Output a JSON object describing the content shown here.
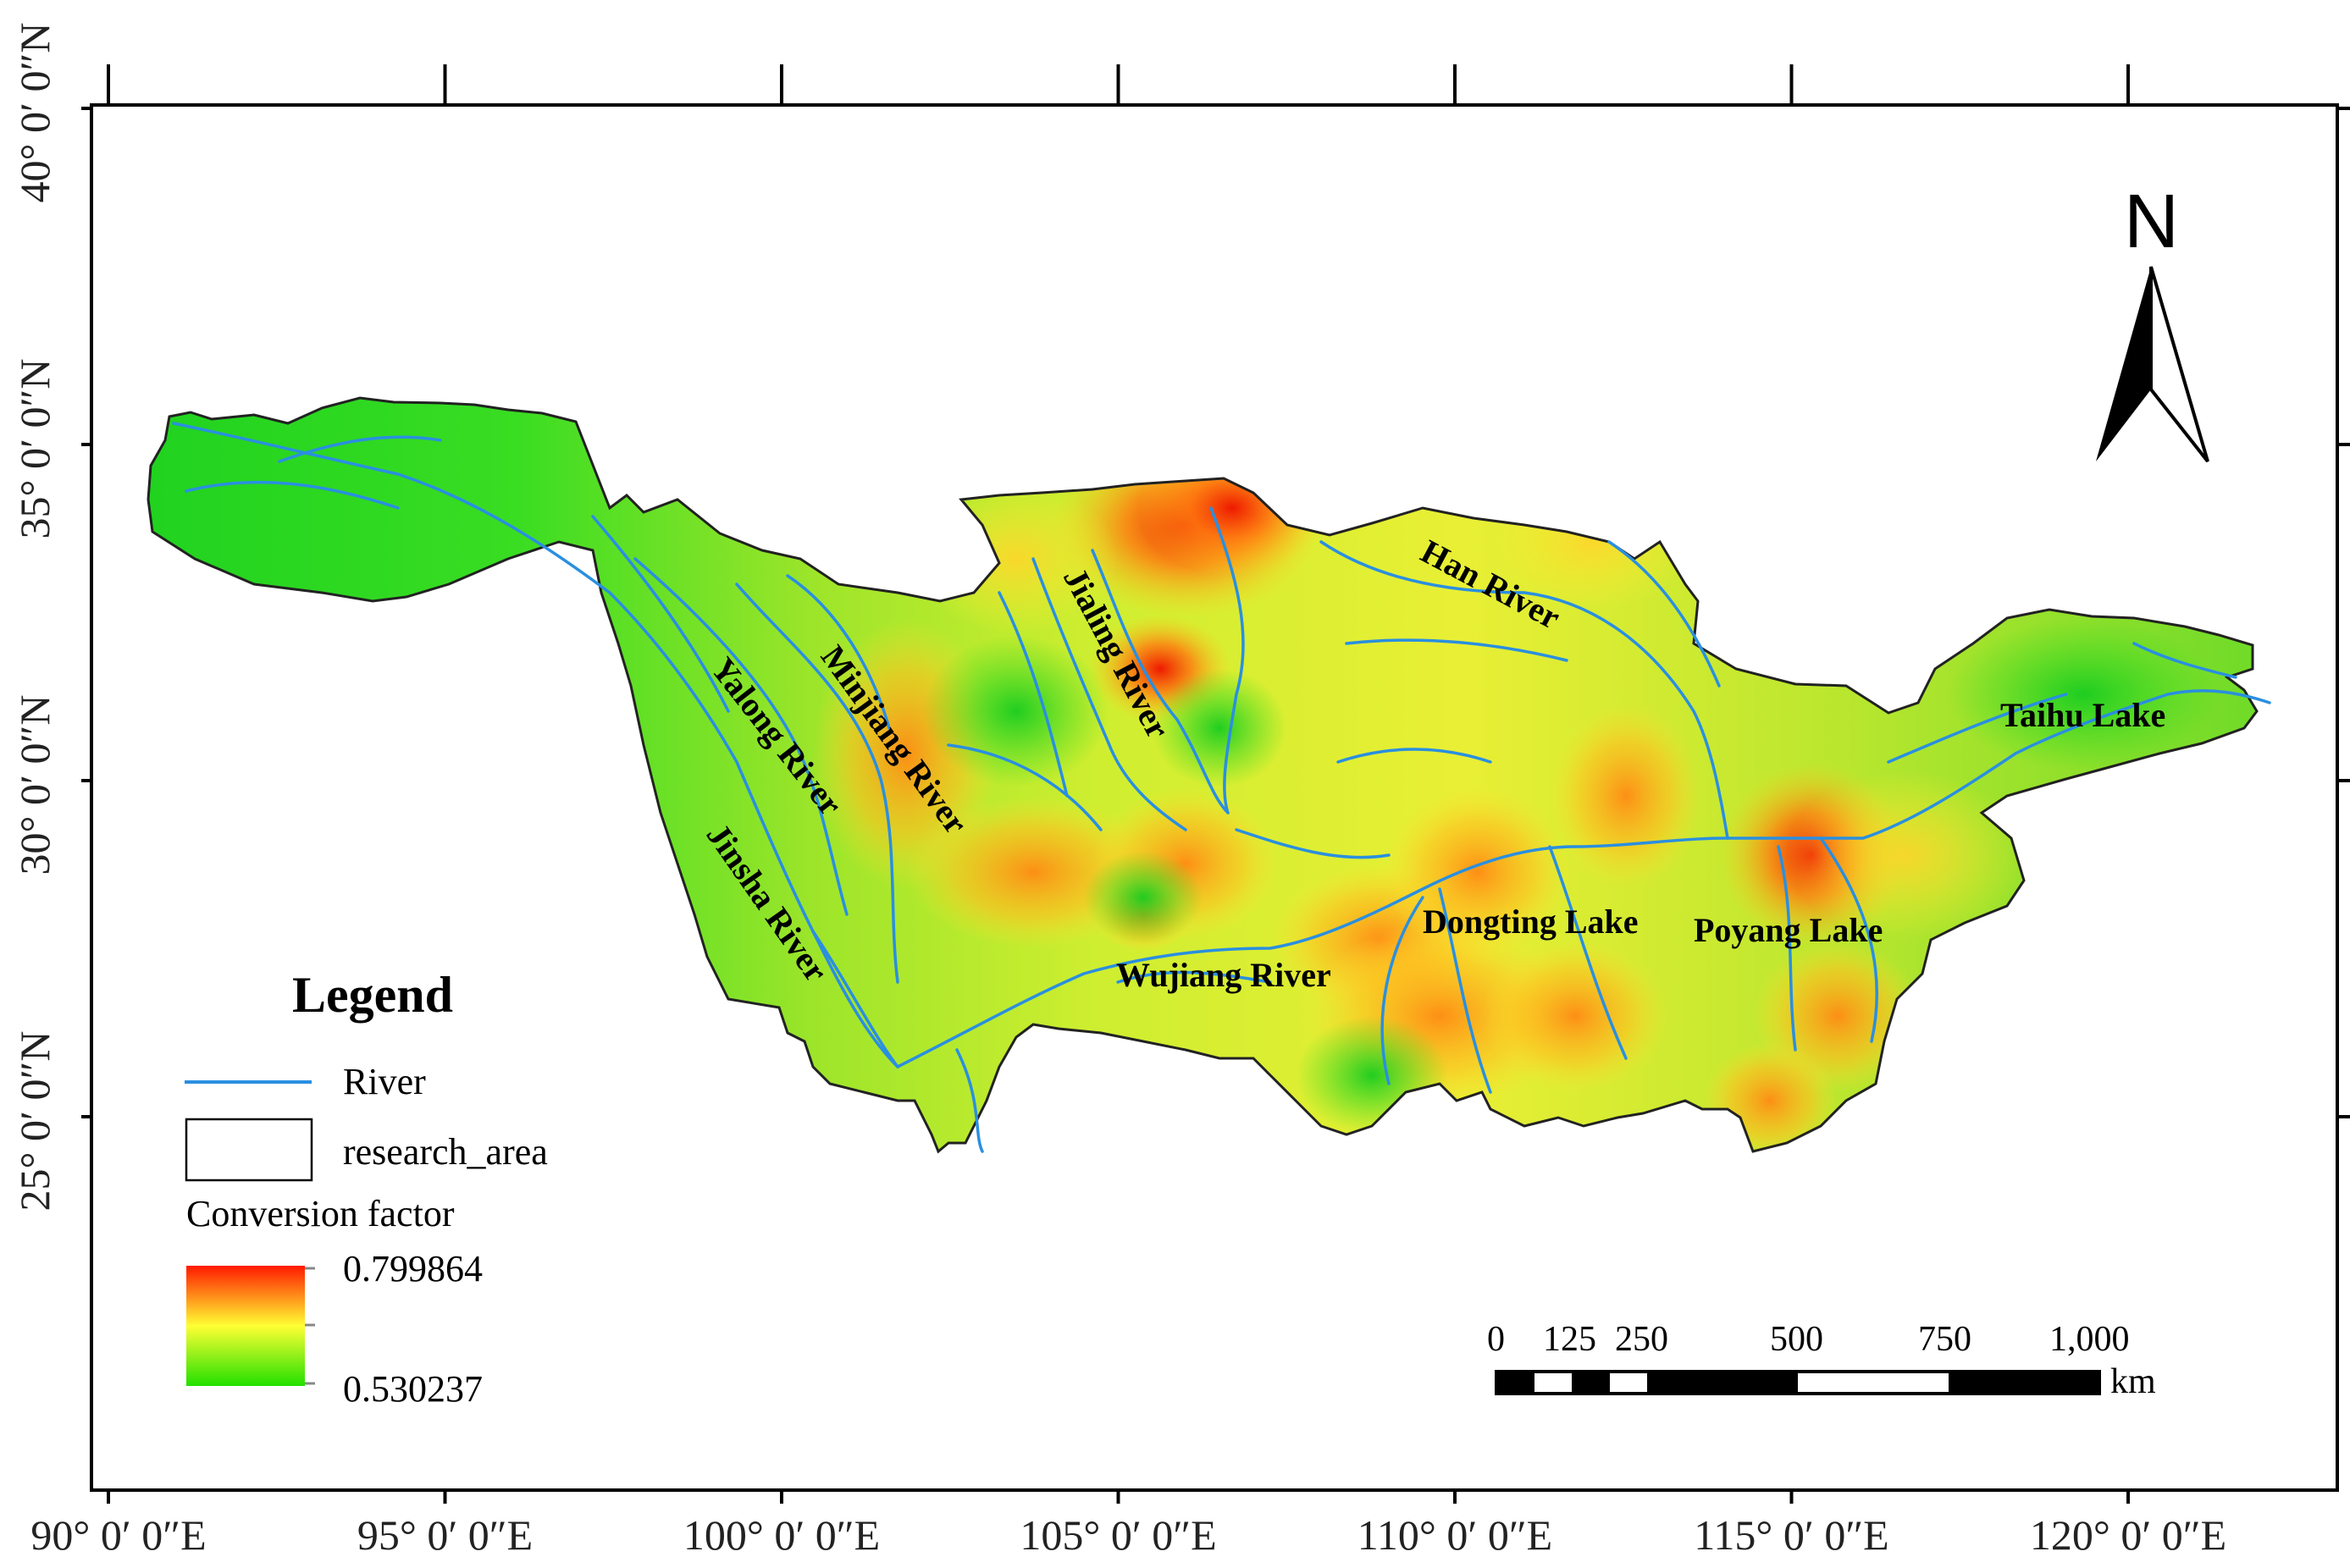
{
  "map": {
    "x_ticks": [
      {
        "lon": 90,
        "label": "90°  0′ 0″E"
      },
      {
        "lon": 95,
        "label": "95°  0′ 0″E"
      },
      {
        "lon": 100,
        "label": "100°  0′ 0″E"
      },
      {
        "lon": 105,
        "label": "105°  0′ 0″E"
      },
      {
        "lon": 110,
        "label": "110°  0′ 0″E"
      },
      {
        "lon": 115,
        "label": "115°  0′ 0″E"
      },
      {
        "lon": 120,
        "label": "120°  0′ 0″E"
      }
    ],
    "y_ticks": [
      {
        "lat": 40,
        "label": "40°  0′ 0″N"
      },
      {
        "lat": 35,
        "label": "35°  0′ 0″N"
      },
      {
        "lat": 30,
        "label": "30°  0′ 0″N"
      },
      {
        "lat": 25,
        "label": "25°  0′ 0″N"
      }
    ],
    "places": [
      {
        "id": "jialing-river",
        "text": "Jialing River"
      },
      {
        "id": "han-river",
        "text": "Han River"
      },
      {
        "id": "minjiang-river",
        "text": "Minjiang River"
      },
      {
        "id": "yalong-river",
        "text": "Yalong River"
      },
      {
        "id": "jinsha-river",
        "text": "Jinsha River"
      },
      {
        "id": "wujiang-river",
        "text": "Wujiang River"
      },
      {
        "id": "dongting-lake",
        "text": "Dongting Lake"
      },
      {
        "id": "poyang-lake",
        "text": "Poyang Lake"
      },
      {
        "id": "taihu-lake",
        "text": "Taihu Lake"
      }
    ],
    "legend": {
      "title": "Legend",
      "river_label": "River",
      "area_label": "research_area",
      "ramp_title": "Conversion factor",
      "ramp_max": "0.799864",
      "ramp_min": "0.530237",
      "ramp_colors": [
        "#ff1a00",
        "#ffff33",
        "#22e000"
      ]
    },
    "north_arrow": {
      "label": "N"
    },
    "scale_bar": {
      "ticks": [
        "0",
        "125",
        "250",
        "500",
        "750",
        "1,000"
      ],
      "unit": "km"
    },
    "colors": {
      "river": "#2a8fe0",
      "frame": "#000000"
    }
  }
}
